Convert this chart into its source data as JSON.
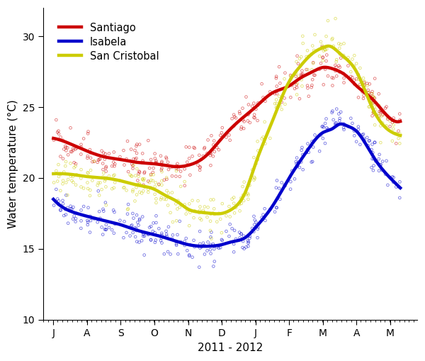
{
  "title": "",
  "xlabel": "2011 - 2012",
  "ylabel": "Water temperature (°C)",
  "ylim": [
    10,
    32
  ],
  "yticks": [
    10,
    15,
    20,
    25,
    30
  ],
  "x_labels": [
    "J",
    "A",
    "S",
    "O",
    "N",
    "D",
    "J",
    "F",
    "M",
    "A",
    "M"
  ],
  "x_tick_pos": [
    0,
    1,
    2,
    3,
    4,
    5,
    6,
    7,
    8,
    9,
    10
  ],
  "legend": [
    "Santiago",
    "Isabela",
    "San Cristobal"
  ],
  "colors": {
    "Santiago": "#cc0000",
    "Isabela": "#0000cc",
    "San Cristobal": "#cccc00"
  },
  "santiago_ctrl_x": [
    0.0,
    0.3,
    0.7,
    1.0,
    1.5,
    2.0,
    2.5,
    3.0,
    3.3,
    3.7,
    4.0,
    4.5,
    5.0,
    5.5,
    6.0,
    6.5,
    7.0,
    7.3,
    7.7,
    8.0,
    8.3,
    8.7,
    9.0,
    9.5,
    10.0,
    10.3
  ],
  "santiago_ctrl_y": [
    22.8,
    22.6,
    22.2,
    21.9,
    21.5,
    21.3,
    21.1,
    21.0,
    20.9,
    20.8,
    20.9,
    21.5,
    22.8,
    24.0,
    25.0,
    26.0,
    26.5,
    27.0,
    27.5,
    27.8,
    27.7,
    27.2,
    26.5,
    25.5,
    24.2,
    24.0
  ],
  "isabela_ctrl_x": [
    0.0,
    0.3,
    0.7,
    1.0,
    1.5,
    2.0,
    2.5,
    3.0,
    3.3,
    3.7,
    4.0,
    4.3,
    4.7,
    5.0,
    5.3,
    5.7,
    6.0,
    6.5,
    7.0,
    7.5,
    8.0,
    8.3,
    8.5,
    8.7,
    9.0,
    9.5,
    10.0,
    10.3
  ],
  "isabela_ctrl_y": [
    18.5,
    17.9,
    17.5,
    17.3,
    17.0,
    16.7,
    16.3,
    16.0,
    15.8,
    15.5,
    15.3,
    15.2,
    15.2,
    15.3,
    15.5,
    15.8,
    16.5,
    18.0,
    20.0,
    21.8,
    23.2,
    23.5,
    23.8,
    23.7,
    23.3,
    21.5,
    20.0,
    19.3
  ],
  "sanc_ctrl_x": [
    0.0,
    0.3,
    0.7,
    1.0,
    1.5,
    2.0,
    2.5,
    3.0,
    3.3,
    3.7,
    4.0,
    4.3,
    4.7,
    5.0,
    5.3,
    5.7,
    6.0,
    6.5,
    7.0,
    7.3,
    7.7,
    8.0,
    8.2,
    8.5,
    9.0,
    9.5,
    10.0,
    10.3
  ],
  "sanc_ctrl_y": [
    20.3,
    20.3,
    20.2,
    20.1,
    20.0,
    19.8,
    19.5,
    19.2,
    18.8,
    18.3,
    17.8,
    17.6,
    17.5,
    17.5,
    17.8,
    19.0,
    21.0,
    24.0,
    26.8,
    27.8,
    28.8,
    29.2,
    29.3,
    28.8,
    27.5,
    24.8,
    23.3,
    23.0
  ],
  "scatter_noise_santiago": 0.65,
  "scatter_noise_isabela": 0.6,
  "scatter_noise_sanc": 0.75
}
